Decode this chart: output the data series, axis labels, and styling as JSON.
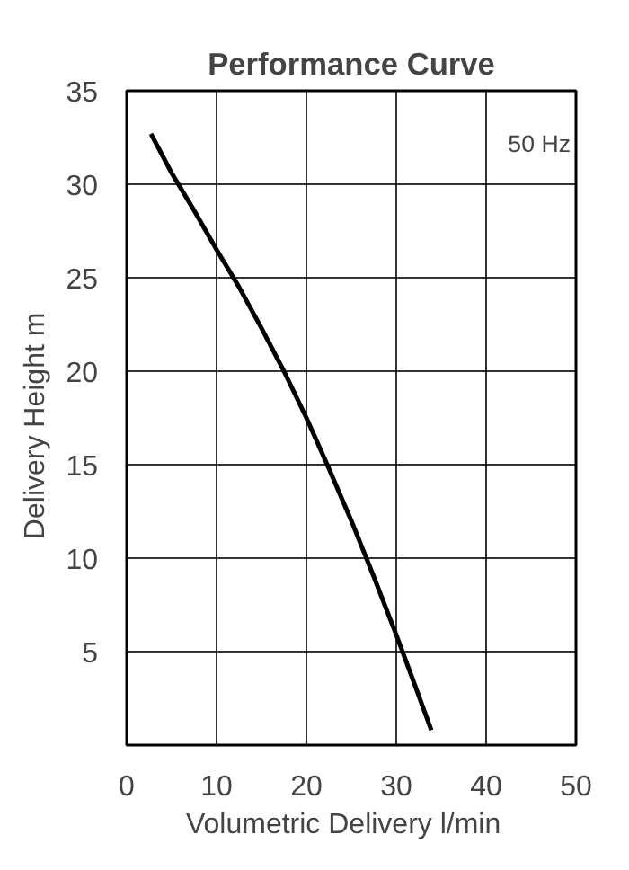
{
  "chart_data": {
    "type": "line",
    "title": "Performance Curve",
    "xlabel": "Volumetric Delivery   l/min",
    "ylabel": "Delivery Height   m",
    "x": [
      2.7,
      5,
      7.5,
      10,
      12.5,
      15,
      17.5,
      20,
      22.5,
      25,
      27.5,
      30,
      32,
      33.9
    ],
    "series": [
      {
        "color": "#000000",
        "values": [
          32.7,
          30.6,
          28.6,
          26.5,
          24.5,
          22.3,
          20,
          17.5,
          14.8,
          12,
          9,
          5.9,
          3.3,
          0.8
        ]
      }
    ],
    "xlim": [
      0,
      50
    ],
    "ylim": [
      0,
      35
    ],
    "xticks": [
      0,
      10,
      20,
      30,
      40,
      50
    ],
    "yticks": [
      {
        "value": 0,
        "label": null
      },
      5,
      10,
      15,
      20,
      25,
      30,
      35
    ],
    "grid": true,
    "marker": "none",
    "line_style": "solid",
    "annotations": [
      "50 Hz"
    ]
  }
}
